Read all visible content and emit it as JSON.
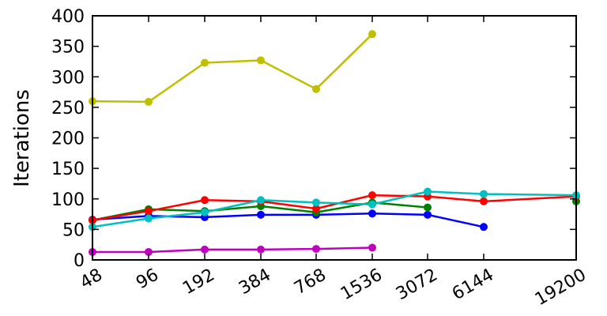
{
  "chart_data": {
    "type": "line",
    "title": "",
    "xlabel": "",
    "ylabel": "Iterations",
    "categories": [
      "48",
      "96",
      "192",
      "384",
      "768",
      "1536",
      "3072",
      "6144",
      "19200"
    ],
    "ylim": [
      0,
      400
    ],
    "yticks": [
      0,
      50,
      100,
      150,
      200,
      250,
      300,
      350,
      400
    ],
    "grid": false,
    "legend": "none",
    "series": [
      {
        "color": "#bfbf00",
        "values": [
          260,
          259,
          323,
          327,
          280,
          370,
          null,
          null,
          null
        ]
      },
      {
        "color": "#0000ff",
        "values": [
          66,
          72,
          70,
          74,
          74,
          76,
          74,
          54,
          null
        ]
      },
      {
        "color": "#008000",
        "values": [
          65,
          83,
          80,
          88,
          78,
          94,
          86,
          null,
          96
        ]
      },
      {
        "color": "#ff0000",
        "values": [
          65,
          80,
          98,
          96,
          84,
          106,
          104,
          96,
          104
        ]
      },
      {
        "color": "#00bfbf",
        "values": [
          54,
          68,
          78,
          98,
          94,
          91,
          112,
          108,
          106
        ]
      },
      {
        "color": "#bf00bf",
        "values": [
          13,
          13,
          17,
          17,
          18,
          20,
          null,
          null,
          null
        ]
      }
    ]
  }
}
